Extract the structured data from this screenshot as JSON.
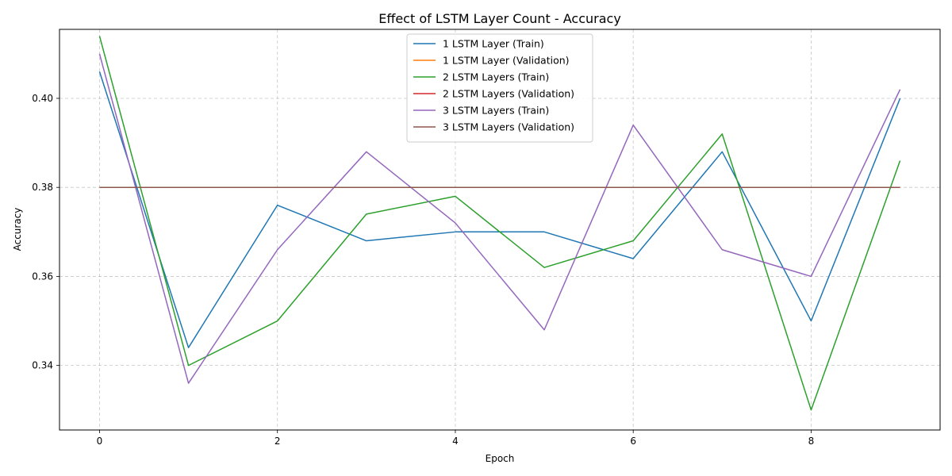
{
  "chart_data": {
    "type": "line",
    "title": "Effect of LSTM Layer Count - Accuracy",
    "xlabel": "Epoch",
    "ylabel": "Accuracy",
    "xlim": [
      -0.45,
      9.45
    ],
    "ylim": [
      0.3255,
      0.4155
    ],
    "xticks": [
      0,
      2,
      4,
      6,
      8
    ],
    "yticks": [
      0.34,
      0.36,
      0.38,
      0.4
    ],
    "ytick_labels": [
      "0.34",
      "0.36",
      "0.38",
      "0.40"
    ],
    "grid": true,
    "legend": "top-center",
    "x": [
      0,
      1,
      2,
      3,
      4,
      5,
      6,
      7,
      8,
      9
    ],
    "series": [
      {
        "name": "1 LSTM Layer (Train)",
        "color": "#1f77b4",
        "values": [
          0.406,
          0.344,
          0.376,
          0.368,
          0.37,
          0.37,
          0.364,
          0.388,
          0.35,
          0.4
        ]
      },
      {
        "name": "1 LSTM Layer (Validation)",
        "color": "#ff7f0e",
        "values": [
          0.38,
          0.38,
          0.38,
          0.38,
          0.38,
          0.38,
          0.38,
          0.38,
          0.38,
          0.38
        ]
      },
      {
        "name": "2 LSTM Layers (Train)",
        "color": "#2ca02c",
        "values": [
          0.414,
          0.34,
          0.35,
          0.374,
          0.378,
          0.362,
          0.368,
          0.392,
          0.33,
          0.386
        ]
      },
      {
        "name": "2 LSTM Layers (Validation)",
        "color": "#d62728",
        "values": [
          0.38,
          0.38,
          0.38,
          0.38,
          0.38,
          0.38,
          0.38,
          0.38,
          0.38,
          0.38
        ]
      },
      {
        "name": "3 LSTM Layers (Train)",
        "color": "#9467bd",
        "values": [
          0.41,
          0.336,
          0.366,
          0.388,
          0.372,
          0.348,
          0.394,
          0.366,
          0.36,
          0.402
        ]
      },
      {
        "name": "3 LSTM Layers (Validation)",
        "color": "#8c564b",
        "values": [
          0.38,
          0.38,
          0.38,
          0.38,
          0.38,
          0.38,
          0.38,
          0.38,
          0.38,
          0.38
        ]
      }
    ]
  }
}
